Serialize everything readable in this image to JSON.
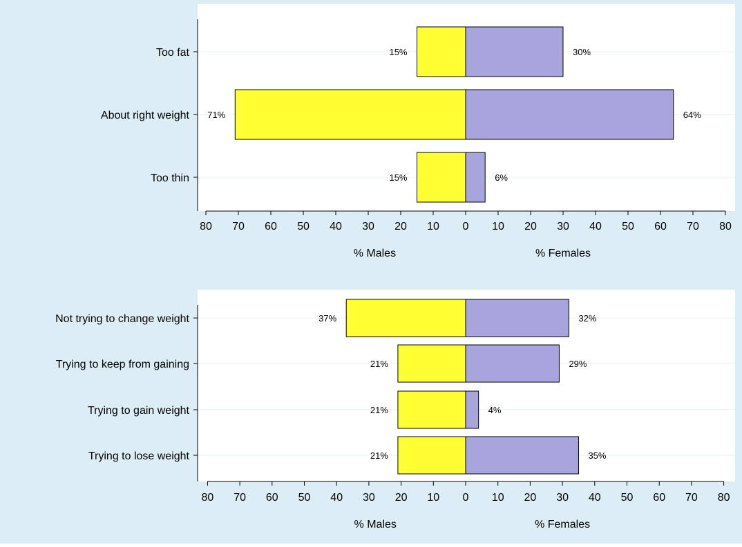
{
  "colors": {
    "background": "#ddedf5",
    "plot_area": "#ffffff",
    "male_bar": "#ffff33",
    "female_bar": "#a8a4de",
    "grid": "#e6eff4",
    "axis": "#000000"
  },
  "chart_data": [
    {
      "type": "bar",
      "orientation": "horizontal-diverging",
      "categories": [
        "Too fat",
        "About right weight",
        "Too thin"
      ],
      "series": [
        {
          "side": "left",
          "values": [
            15,
            71,
            15
          ],
          "labels": [
            "15%",
            "71%",
            "15%"
          ]
        },
        {
          "side": "right",
          "values": [
            30,
            64,
            6
          ],
          "labels": [
            "30%",
            "64%",
            "6%"
          ]
        }
      ],
      "xlim": [
        -80,
        80
      ],
      "ticks": [
        80,
        70,
        60,
        50,
        40,
        30,
        20,
        10,
        0,
        10,
        20,
        30,
        40,
        50,
        60,
        70,
        80
      ],
      "xlabel_left": "% Males",
      "xlabel_right": "% Females",
      "grid": true
    },
    {
      "type": "bar",
      "orientation": "horizontal-diverging",
      "categories": [
        "Not trying to change weight",
        "Trying to keep from gaining",
        "Trying to gain weight",
        "Trying to lose weight"
      ],
      "series": [
        {
          "side": "left",
          "values": [
            37,
            21,
            21,
            21
          ],
          "labels": [
            "37%",
            "21%",
            "21%",
            "21%"
          ]
        },
        {
          "side": "right",
          "values": [
            32,
            29,
            4,
            35
          ],
          "labels": [
            "32%",
            "29%",
            "4%",
            "35%"
          ]
        }
      ],
      "xlim": [
        -80,
        80
      ],
      "ticks": [
        80,
        70,
        60,
        50,
        40,
        30,
        20,
        10,
        0,
        10,
        20,
        30,
        40,
        50,
        60,
        70,
        80
      ],
      "xlabel_left": "% Males",
      "xlabel_right": "% Females",
      "grid": true
    }
  ]
}
